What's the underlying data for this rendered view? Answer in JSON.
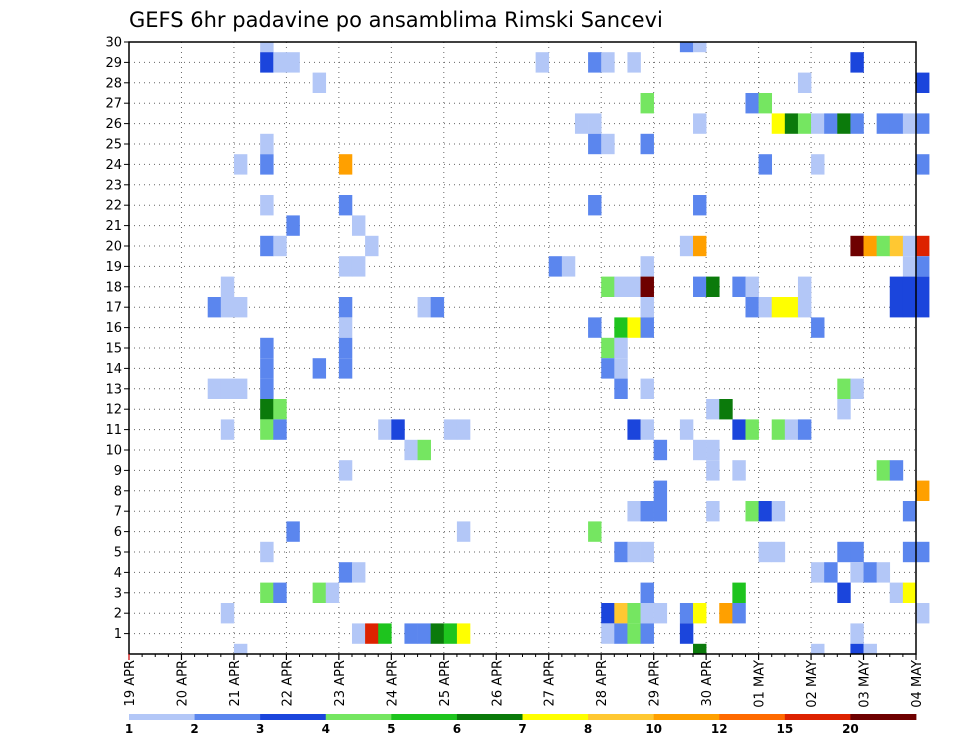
{
  "chart_data": {
    "type": "heatmap",
    "title": "GEFS 6hr padavine po ansamblima Rimski Sancevi",
    "ylim": [
      1,
      30
    ],
    "y_ticks": [
      "1",
      "2",
      "3",
      "4",
      "5",
      "6",
      "7",
      "8",
      "9",
      "10",
      "11",
      "12",
      "13",
      "14",
      "15",
      "16",
      "17",
      "18",
      "19",
      "20",
      "21",
      "22",
      "23",
      "24",
      "25",
      "26",
      "27",
      "28",
      "29",
      "30"
    ],
    "x_ticks": [
      "19 APR",
      "20 APR",
      "21 APR",
      "22 APR",
      "23 APR",
      "24 APR",
      "25 APR",
      "26 APR",
      "27 APR",
      "28 APR",
      "29 APR",
      "30 APR",
      "01 MAY",
      "02 MAY",
      "03 MAY",
      "04 MAY"
    ],
    "steps_per_day": 4,
    "legend": {
      "labels": [
        "1",
        "2",
        "3",
        "4",
        "5",
        "6",
        "7",
        "8",
        "10",
        "12",
        "15",
        "20"
      ],
      "colors": [
        "#b3c7f7",
        "#5b86ee",
        "#1b45dc",
        "#75e661",
        "#1ec41e",
        "#0b7a0b",
        "#ffff00",
        "#ffc832",
        "#ffa000",
        "#ff6a00",
        "#dd2200",
        "#6e0000"
      ]
    },
    "cells": [
      {
        "member": 30,
        "step": 10,
        "level": 1
      },
      {
        "member": 30,
        "step": 42,
        "level": 2
      },
      {
        "member": 30,
        "step": 43,
        "level": 1
      },
      {
        "member": 29,
        "step": 10,
        "level": 3
      },
      {
        "member": 29,
        "step": 11,
        "level": 1
      },
      {
        "member": 29,
        "step": 12,
        "level": 1
      },
      {
        "member": 29,
        "step": 31,
        "level": 1
      },
      {
        "member": 29,
        "step": 35,
        "level": 2
      },
      {
        "member": 29,
        "step": 36,
        "level": 1
      },
      {
        "member": 29,
        "step": 38,
        "level": 1
      },
      {
        "member": 29,
        "step": 55,
        "level": 3
      },
      {
        "member": 28,
        "step": 14,
        "level": 1
      },
      {
        "member": 28,
        "step": 51,
        "level": 1
      },
      {
        "member": 28,
        "step": 60,
        "level": 3
      },
      {
        "member": 27,
        "step": 39,
        "level": 4
      },
      {
        "member": 27,
        "step": 47,
        "level": 2
      },
      {
        "member": 27,
        "step": 48,
        "level": 4
      },
      {
        "member": 26,
        "step": 34,
        "level": 1
      },
      {
        "member": 26,
        "step": 35,
        "level": 1
      },
      {
        "member": 26,
        "step": 43,
        "level": 1
      },
      {
        "member": 26,
        "step": 49,
        "level": 7
      },
      {
        "member": 26,
        "step": 50,
        "level": 6
      },
      {
        "member": 26,
        "step": 51,
        "level": 4
      },
      {
        "member": 26,
        "step": 52,
        "level": 1
      },
      {
        "member": 26,
        "step": 53,
        "level": 2
      },
      {
        "member": 26,
        "step": 54,
        "level": 6
      },
      {
        "member": 26,
        "step": 55,
        "level": 2
      },
      {
        "member": 26,
        "step": 57,
        "level": 2
      },
      {
        "member": 26,
        "step": 58,
        "level": 2
      },
      {
        "member": 26,
        "step": 59,
        "level": 1
      },
      {
        "member": 26,
        "step": 60,
        "level": 2
      },
      {
        "member": 25,
        "step": 10,
        "level": 1
      },
      {
        "member": 25,
        "step": 35,
        "level": 2
      },
      {
        "member": 25,
        "step": 36,
        "level": 1
      },
      {
        "member": 25,
        "step": 39,
        "level": 2
      },
      {
        "member": 24,
        "step": 8,
        "level": 1
      },
      {
        "member": 24,
        "step": 10,
        "level": 2
      },
      {
        "member": 24,
        "step": 16,
        "level": 9
      },
      {
        "member": 24,
        "step": 48,
        "level": 2
      },
      {
        "member": 24,
        "step": 52,
        "level": 1
      },
      {
        "member": 24,
        "step": 60,
        "level": 2
      },
      {
        "member": 22,
        "step": 10,
        "level": 1
      },
      {
        "member": 22,
        "step": 16,
        "level": 2
      },
      {
        "member": 22,
        "step": 35,
        "level": 2
      },
      {
        "member": 22,
        "step": 43,
        "level": 2
      },
      {
        "member": 21,
        "step": 12,
        "level": 2
      },
      {
        "member": 21,
        "step": 17,
        "level": 1
      },
      {
        "member": 20,
        "step": 10,
        "level": 2
      },
      {
        "member": 20,
        "step": 11,
        "level": 1
      },
      {
        "member": 20,
        "step": 18,
        "level": 1
      },
      {
        "member": 20,
        "step": 42,
        "level": 1
      },
      {
        "member": 20,
        "step": 43,
        "level": 9
      },
      {
        "member": 20,
        "step": 55,
        "level": 12
      },
      {
        "member": 20,
        "step": 56,
        "level": 9
      },
      {
        "member": 20,
        "step": 57,
        "level": 4
      },
      {
        "member": 20,
        "step": 58,
        "level": 8
      },
      {
        "member": 20,
        "step": 59,
        "level": 1
      },
      {
        "member": 20,
        "step": 60,
        "level": 11
      },
      {
        "member": 19,
        "step": 16,
        "level": 1
      },
      {
        "member": 19,
        "step": 17,
        "level": 1
      },
      {
        "member": 19,
        "step": 32,
        "level": 2
      },
      {
        "member": 19,
        "step": 33,
        "level": 1
      },
      {
        "member": 19,
        "step": 39,
        "level": 1
      },
      {
        "member": 19,
        "step": 59,
        "level": 1
      },
      {
        "member": 19,
        "step": 60,
        "level": 2
      },
      {
        "member": 18,
        "step": 7,
        "level": 1
      },
      {
        "member": 18,
        "step": 36,
        "level": 4
      },
      {
        "member": 18,
        "step": 37,
        "level": 1
      },
      {
        "member": 18,
        "step": 38,
        "level": 1
      },
      {
        "member": 18,
        "step": 39,
        "level": 12
      },
      {
        "member": 18,
        "step": 43,
        "level": 2
      },
      {
        "member": 18,
        "step": 44,
        "level": 6
      },
      {
        "member": 18,
        "step": 46,
        "level": 2
      },
      {
        "member": 18,
        "step": 47,
        "level": 1
      },
      {
        "member": 18,
        "step": 51,
        "level": 1
      },
      {
        "member": 18,
        "step": 58,
        "level": 3
      },
      {
        "member": 18,
        "step": 59,
        "level": 3
      },
      {
        "member": 18,
        "step": 60,
        "level": 3
      },
      {
        "member": 17,
        "step": 6,
        "level": 2
      },
      {
        "member": 17,
        "step": 7,
        "level": 1
      },
      {
        "member": 17,
        "step": 8,
        "level": 1
      },
      {
        "member": 17,
        "step": 16,
        "level": 2
      },
      {
        "member": 17,
        "step": 22,
        "level": 1
      },
      {
        "member": 17,
        "step": 23,
        "level": 2
      },
      {
        "member": 17,
        "step": 39,
        "level": 1
      },
      {
        "member": 17,
        "step": 47,
        "level": 2
      },
      {
        "member": 17,
        "step": 48,
        "level": 1
      },
      {
        "member": 17,
        "step": 49,
        "level": 7
      },
      {
        "member": 17,
        "step": 50,
        "level": 7
      },
      {
        "member": 17,
        "step": 51,
        "level": 1
      },
      {
        "member": 17,
        "step": 58,
        "level": 3
      },
      {
        "member": 17,
        "step": 59,
        "level": 3
      },
      {
        "member": 17,
        "step": 60,
        "level": 3
      },
      {
        "member": 16,
        "step": 16,
        "level": 1
      },
      {
        "member": 16,
        "step": 35,
        "level": 2
      },
      {
        "member": 16,
        "step": 37,
        "level": 5
      },
      {
        "member": 16,
        "step": 38,
        "level": 7
      },
      {
        "member": 16,
        "step": 39,
        "level": 2
      },
      {
        "member": 16,
        "step": 52,
        "level": 2
      },
      {
        "member": 15,
        "step": 10,
        "level": 2
      },
      {
        "member": 15,
        "step": 16,
        "level": 2
      },
      {
        "member": 15,
        "step": 36,
        "level": 4
      },
      {
        "member": 15,
        "step": 37,
        "level": 1
      },
      {
        "member": 14,
        "step": 10,
        "level": 2
      },
      {
        "member": 14,
        "step": 14,
        "level": 2
      },
      {
        "member": 14,
        "step": 16,
        "level": 2
      },
      {
        "member": 14,
        "step": 36,
        "level": 2
      },
      {
        "member": 14,
        "step": 37,
        "level": 1
      },
      {
        "member": 13,
        "step": 6,
        "level": 1
      },
      {
        "member": 13,
        "step": 7,
        "level": 1
      },
      {
        "member": 13,
        "step": 8,
        "level": 1
      },
      {
        "member": 13,
        "step": 10,
        "level": 2
      },
      {
        "member": 13,
        "step": 37,
        "level": 2
      },
      {
        "member": 13,
        "step": 39,
        "level": 1
      },
      {
        "member": 13,
        "step": 54,
        "level": 4
      },
      {
        "member": 13,
        "step": 55,
        "level": 1
      },
      {
        "member": 12,
        "step": 10,
        "level": 6
      },
      {
        "member": 12,
        "step": 11,
        "level": 4
      },
      {
        "member": 12,
        "step": 44,
        "level": 1
      },
      {
        "member": 12,
        "step": 45,
        "level": 6
      },
      {
        "member": 12,
        "step": 54,
        "level": 1
      },
      {
        "member": 11,
        "step": 7,
        "level": 1
      },
      {
        "member": 11,
        "step": 10,
        "level": 4
      },
      {
        "member": 11,
        "step": 11,
        "level": 2
      },
      {
        "member": 11,
        "step": 19,
        "level": 1
      },
      {
        "member": 11,
        "step": 20,
        "level": 3
      },
      {
        "member": 11,
        "step": 24,
        "level": 1
      },
      {
        "member": 11,
        "step": 25,
        "level": 1
      },
      {
        "member": 11,
        "step": 38,
        "level": 3
      },
      {
        "member": 11,
        "step": 39,
        "level": 1
      },
      {
        "member": 11,
        "step": 42,
        "level": 1
      },
      {
        "member": 11,
        "step": 46,
        "level": 3
      },
      {
        "member": 11,
        "step": 47,
        "level": 4
      },
      {
        "member": 11,
        "step": 49,
        "level": 4
      },
      {
        "member": 11,
        "step": 50,
        "level": 1
      },
      {
        "member": 11,
        "step": 51,
        "level": 2
      },
      {
        "member": 10,
        "step": 21,
        "level": 1
      },
      {
        "member": 10,
        "step": 22,
        "level": 4
      },
      {
        "member": 10,
        "step": 40,
        "level": 2
      },
      {
        "member": 10,
        "step": 43,
        "level": 1
      },
      {
        "member": 10,
        "step": 44,
        "level": 1
      },
      {
        "member": 9,
        "step": 16,
        "level": 1
      },
      {
        "member": 9,
        "step": 44,
        "level": 1
      },
      {
        "member": 9,
        "step": 46,
        "level": 1
      },
      {
        "member": 9,
        "step": 57,
        "level": 4
      },
      {
        "member": 9,
        "step": 58,
        "level": 2
      },
      {
        "member": 8,
        "step": 40,
        "level": 2
      },
      {
        "member": 8,
        "step": 60,
        "level": 9
      },
      {
        "member": 7,
        "step": 38,
        "level": 1
      },
      {
        "member": 7,
        "step": 39,
        "level": 2
      },
      {
        "member": 7,
        "step": 40,
        "level": 2
      },
      {
        "member": 7,
        "step": 44,
        "level": 1
      },
      {
        "member": 7,
        "step": 47,
        "level": 4
      },
      {
        "member": 7,
        "step": 48,
        "level": 3
      },
      {
        "member": 7,
        "step": 49,
        "level": 1
      },
      {
        "member": 7,
        "step": 59,
        "level": 2
      },
      {
        "member": 6,
        "step": 12,
        "level": 2
      },
      {
        "member": 6,
        "step": 25,
        "level": 1
      },
      {
        "member": 6,
        "step": 35,
        "level": 4
      },
      {
        "member": 5,
        "step": 10,
        "level": 1
      },
      {
        "member": 5,
        "step": 37,
        "level": 2
      },
      {
        "member": 5,
        "step": 38,
        "level": 1
      },
      {
        "member": 5,
        "step": 39,
        "level": 1
      },
      {
        "member": 5,
        "step": 48,
        "level": 1
      },
      {
        "member": 5,
        "step": 49,
        "level": 1
      },
      {
        "member": 5,
        "step": 54,
        "level": 2
      },
      {
        "member": 5,
        "step": 55,
        "level": 2
      },
      {
        "member": 5,
        "step": 59,
        "level": 2
      },
      {
        "member": 5,
        "step": 60,
        "level": 2
      },
      {
        "member": 4,
        "step": 16,
        "level": 2
      },
      {
        "member": 4,
        "step": 17,
        "level": 1
      },
      {
        "member": 4,
        "step": 52,
        "level": 1
      },
      {
        "member": 4,
        "step": 53,
        "level": 2
      },
      {
        "member": 4,
        "step": 55,
        "level": 1
      },
      {
        "member": 4,
        "step": 56,
        "level": 2
      },
      {
        "member": 4,
        "step": 57,
        "level": 1
      },
      {
        "member": 3,
        "step": 10,
        "level": 4
      },
      {
        "member": 3,
        "step": 11,
        "level": 2
      },
      {
        "member": 3,
        "step": 14,
        "level": 4
      },
      {
        "member": 3,
        "step": 15,
        "level": 1
      },
      {
        "member": 3,
        "step": 39,
        "level": 2
      },
      {
        "member": 3,
        "step": 46,
        "level": 5
      },
      {
        "member": 3,
        "step": 54,
        "level": 3
      },
      {
        "member": 3,
        "step": 58,
        "level": 1
      },
      {
        "member": 3,
        "step": 59,
        "level": 7
      },
      {
        "member": 2,
        "step": 7,
        "level": 1
      },
      {
        "member": 2,
        "step": 36,
        "level": 3
      },
      {
        "member": 2,
        "step": 37,
        "level": 8
      },
      {
        "member": 2,
        "step": 38,
        "level": 4
      },
      {
        "member": 2,
        "step": 39,
        "level": 1
      },
      {
        "member": 2,
        "step": 40,
        "level": 1
      },
      {
        "member": 2,
        "step": 42,
        "level": 2
      },
      {
        "member": 2,
        "step": 43,
        "level": 7
      },
      {
        "member": 2,
        "step": 45,
        "level": 9
      },
      {
        "member": 2,
        "step": 46,
        "level": 2
      },
      {
        "member": 2,
        "step": 60,
        "level": 1
      },
      {
        "member": 1,
        "step": 17,
        "level": 1
      },
      {
        "member": 1,
        "step": 18,
        "level": 11
      },
      {
        "member": 1,
        "step": 19,
        "level": 5
      },
      {
        "member": 1,
        "step": 21,
        "level": 2
      },
      {
        "member": 1,
        "step": 22,
        "level": 2
      },
      {
        "member": 1,
        "step": 23,
        "level": 6
      },
      {
        "member": 1,
        "step": 24,
        "level": 5
      },
      {
        "member": 1,
        "step": 25,
        "level": 7
      },
      {
        "member": 1,
        "step": 36,
        "level": 1
      },
      {
        "member": 1,
        "step": 37,
        "level": 2
      },
      {
        "member": 1,
        "step": 38,
        "level": 4
      },
      {
        "member": 1,
        "step": 39,
        "level": 2
      },
      {
        "member": 1,
        "step": 42,
        "level": 3
      },
      {
        "member": 1,
        "step": 55,
        "level": 1
      },
      {
        "member": 0,
        "step": 8,
        "level": 1
      },
      {
        "member": 0,
        "step": 43,
        "level": 6
      },
      {
        "member": 0,
        "step": 52,
        "level": 1
      },
      {
        "member": 0,
        "step": 55,
        "level": 3
      },
      {
        "member": 0,
        "step": 56,
        "level": 1
      }
    ]
  }
}
